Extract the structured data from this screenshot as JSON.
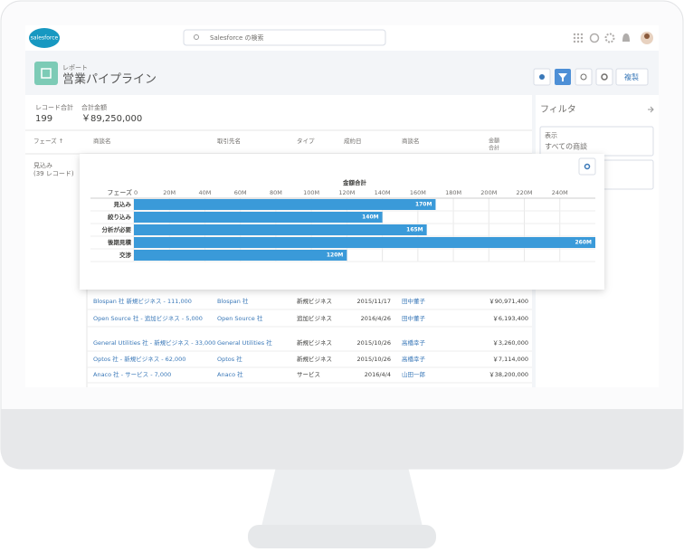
{
  "header": {
    "logo": "salesforce",
    "search": "Salesforce の検索"
  },
  "report": {
    "label": "レポート",
    "title": "営業パイプライン",
    "button": "複製"
  },
  "summary": {
    "records_label": "レコード合計",
    "records": 199,
    "amount_label": "合計金額",
    "amount": "￥89,250,000"
  },
  "table": {
    "columns": [
      "フェーズ ↑",
      "商談名",
      "取引先名",
      "タイプ",
      "成約日",
      "商談名"
    ],
    "amount_header": [
      "金額",
      "合計"
    ],
    "group": {
      "name": "見込み",
      "count": "(39 レコード)"
    },
    "rows": [
      [
        "Blospan 社 新規ビジネス - 111,000",
        "Blospan 社",
        "新規ビジネス",
        "2015/11/17",
        "田中董子",
        "￥90,971,400"
      ],
      [
        "Open Source 社 - 追加ビジネス - 5,000",
        "Open Source 社",
        "追加ビジネス",
        "2016/4/26",
        "田中董子",
        "￥6,193,400"
      ],
      [
        "General Utilities 社 - 新規ビジネス - 33,000",
        "General Utilities 社",
        "新規ビジネス",
        "2015/10/26",
        "高橋幸子",
        "￥3,260,000"
      ],
      [
        "Optos 社 - 新規ビジネス - 62,000",
        "Optos 社",
        "新規ビジネス",
        "2015/10/26",
        "高橋幸子",
        "￥7,114,000"
      ],
      [
        "Anaco 社 - サービス - 7,000",
        "Anaco 社",
        "サービス",
        "2016/4/4",
        "山田一郎",
        "￥38,200,000"
      ]
    ]
  },
  "filter_panel": {
    "title": "フィルタ",
    "label": "表示",
    "value": "すべての商談"
  },
  "chart_data": {
    "type": "bar",
    "orientation": "horizontal",
    "title": "金額合計",
    "y_label": "フェーズ",
    "categories": [
      "見込み",
      "絞り込み",
      "分析が必要",
      "後期見積",
      "交渉"
    ],
    "values": [
      170,
      140,
      165,
      260,
      120
    ],
    "value_labels": [
      "170M",
      "140M",
      "165M",
      "260M",
      "120M"
    ],
    "color": "#3a9ad9",
    "xlim": [
      0,
      260
    ],
    "xticks": [
      0,
      {
        "value": 20,
        "label": "20M"
      },
      {
        "value": 40,
        "label": "40M"
      },
      {
        "value": 60,
        "label": "60M"
      },
      {
        "value": 80,
        "label": "80M"
      },
      {
        "value": 100,
        "label": "100M"
      },
      {
        "value": 120,
        "label": "120M"
      },
      {
        "value": 140,
        "label": "140M"
      },
      {
        "value": 160,
        "label": "160M"
      },
      {
        "value": 180,
        "label": "180M"
      },
      {
        "value": 200,
        "label": "200M"
      },
      {
        "value": 220,
        "label": "220M"
      },
      {
        "value": 240,
        "label": "240M"
      }
    ],
    "grid": true
  }
}
